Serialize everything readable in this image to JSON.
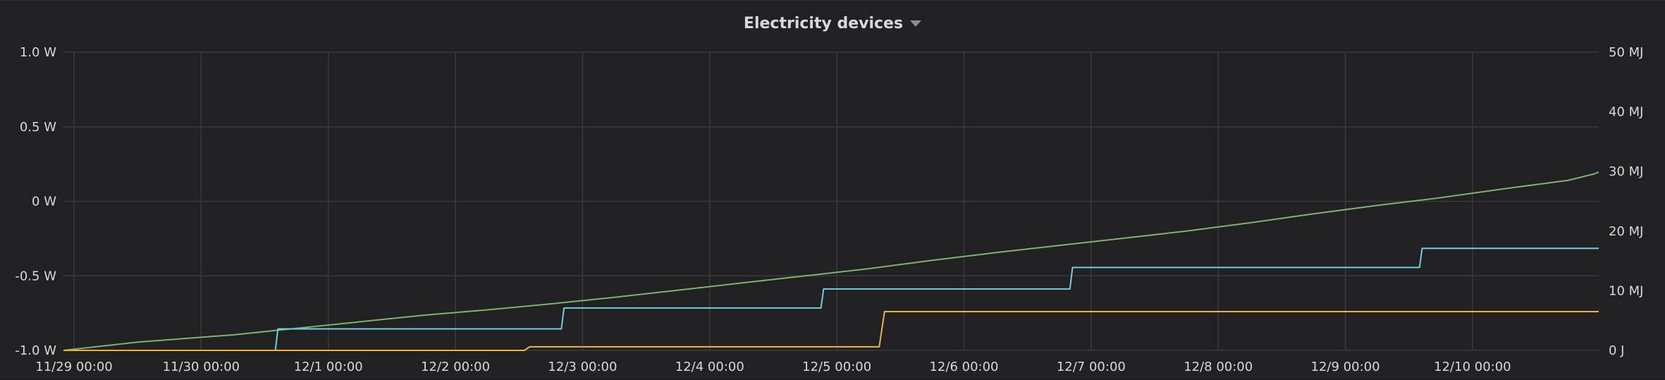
{
  "panel": {
    "title": "Electricity devices"
  },
  "colors": {
    "grid": "#3a3a3e",
    "text": "#d8d9da",
    "series": [
      "#7eb26d",
      "#6ed0e0",
      "#eab839"
    ]
  },
  "chart_data": {
    "type": "line",
    "title": "Electricity devices",
    "x_axis": {
      "type": "time",
      "range": [
        "11/28 22:00",
        "12/10 23:50"
      ],
      "ticks": [
        "11/29 00:00",
        "11/30 00:00",
        "12/1 00:00",
        "12/2 00:00",
        "12/3 00:00",
        "12/4 00:00",
        "12/5 00:00",
        "12/6 00:00",
        "12/7 00:00",
        "12/8 00:00",
        "12/9 00:00",
        "12/10 00:00"
      ]
    },
    "y_left": {
      "unit": "W",
      "range": [
        -1.0,
        1.0
      ],
      "ticks": [
        1.0,
        0.5,
        0,
        -0.5,
        -1.0
      ],
      "tick_labels": [
        "1.0 W",
        "0.5 W",
        "0 W",
        "-0.5 W",
        "-1.0 W"
      ]
    },
    "y_right": {
      "unit": "MJ",
      "range": [
        0,
        50
      ],
      "ticks": [
        50,
        40,
        30,
        20,
        10,
        0
      ],
      "tick_labels": [
        "50 MJ",
        "40 MJ",
        "30 MJ",
        "20 MJ",
        "10 MJ",
        "0 J"
      ]
    },
    "grid": true,
    "legend": "none",
    "series": [
      {
        "axis": "right",
        "color": "#7eb26d",
        "points": [
          [
            "11/28 22:00",
            0
          ],
          [
            "11/29 12:00",
            1.4
          ],
          [
            "11/30 06:00",
            2.6
          ],
          [
            "11/30 18:00",
            3.7
          ],
          [
            "12/1 06:00",
            4.8
          ],
          [
            "12/1 18:00",
            5.9
          ],
          [
            "12/2 06:00",
            6.8
          ],
          [
            "12/2 18:00",
            7.8
          ],
          [
            "12/3 06:00",
            8.9
          ],
          [
            "12/3 18:00",
            10.1
          ],
          [
            "12/4 06:00",
            11.3
          ],
          [
            "12/4 18:00",
            12.5
          ],
          [
            "12/5 06:00",
            13.7
          ],
          [
            "12/5 18:00",
            15.1
          ],
          [
            "12/6 06:00",
            16.4
          ],
          [
            "12/6 18:00",
            17.6
          ],
          [
            "12/7 06:00",
            18.8
          ],
          [
            "12/7 18:00",
            20.0
          ],
          [
            "12/8 06:00",
            21.4
          ],
          [
            "12/8 18:00",
            22.9
          ],
          [
            "12/9 06:00",
            24.3
          ],
          [
            "12/9 18:00",
            25.6
          ],
          [
            "12/10 06:00",
            27.1
          ],
          [
            "12/10 18:00",
            28.5
          ],
          [
            "12/10 23:00",
            29.6
          ],
          [
            "12/10 23:50",
            29.9
          ]
        ]
      },
      {
        "axis": "right",
        "color": "#6ed0e0",
        "points": [
          [
            "11/28 22:00",
            0
          ],
          [
            "11/30 14:00",
            0
          ],
          [
            "11/30 14:30",
            3.6
          ],
          [
            "12/2 20:00",
            3.6
          ],
          [
            "12/2 20:30",
            7.1
          ],
          [
            "12/4 21:00",
            7.1
          ],
          [
            "12/4 21:30",
            10.3
          ],
          [
            "12/6 20:00",
            10.3
          ],
          [
            "12/6 20:30",
            13.9
          ],
          [
            "12/9 14:00",
            13.9
          ],
          [
            "12/9 14:30",
            17.1
          ],
          [
            "12/10 23:50",
            17.1
          ]
        ]
      },
      {
        "axis": "right",
        "color": "#eab839",
        "points": [
          [
            "11/28 22:00",
            0
          ],
          [
            "12/2 13:00",
            0
          ],
          [
            "12/2 14:00",
            0.6
          ],
          [
            "12/5 08:00",
            0.6
          ],
          [
            "12/5 09:00",
            6.5
          ],
          [
            "12/10 23:50",
            6.5
          ]
        ]
      }
    ]
  }
}
